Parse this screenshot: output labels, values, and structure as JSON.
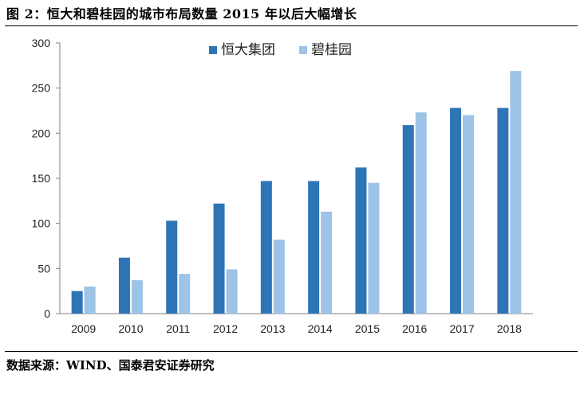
{
  "title": "图 2：恒大和碧桂园的城市布局数量 2015 年以后大幅增长",
  "source": "数据来源：WIND、国泰君安证券研究",
  "colors": {
    "series1": "#2e75b6",
    "series2": "#9dc3e6",
    "axis": "#7f7f7f"
  },
  "chart_data": {
    "type": "bar",
    "title": "",
    "xlabel": "",
    "ylabel": "",
    "ylim": [
      0,
      300
    ],
    "yticks": [
      0,
      50,
      100,
      150,
      200,
      250,
      300
    ],
    "grid": false,
    "legend": "top-center",
    "categories": [
      "2009",
      "2010",
      "2011",
      "2012",
      "2013",
      "2014",
      "2015",
      "2016",
      "2017",
      "2018"
    ],
    "series": [
      {
        "name": "恒大集团",
        "values": [
          25,
          62,
          103,
          122,
          147,
          147,
          162,
          209,
          228,
          228
        ]
      },
      {
        "name": "碧桂园",
        "values": [
          30,
          37,
          44,
          49,
          82,
          113,
          145,
          223,
          220,
          269
        ]
      }
    ]
  }
}
